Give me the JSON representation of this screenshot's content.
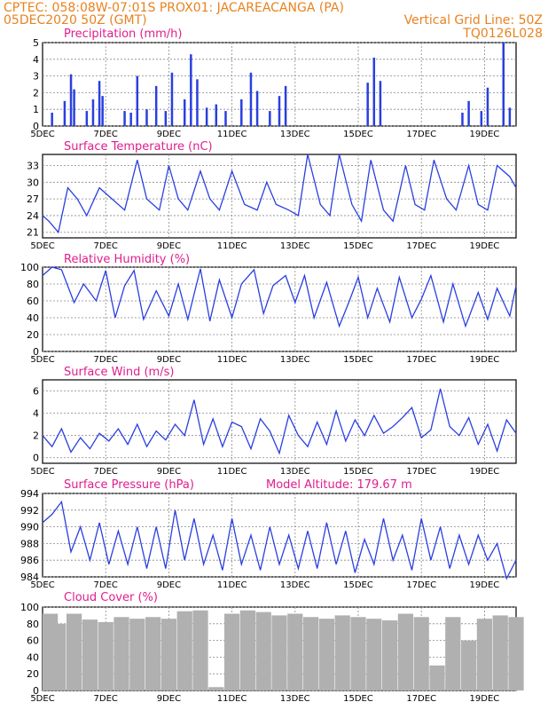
{
  "header": {
    "line1_left": "CPTEC:   058:08W-07:01S   PROX01: JACAREACANGA (PA)",
    "line2_left": "05DEC2020 50Z (GMT)",
    "line2_right": "Vertical Grid Line: 50Z",
    "line3_right": "TQ0126L028"
  },
  "colors": {
    "line": "#2a3fe0",
    "bars": "#2a3fe0",
    "cloud": "#b0b0b0",
    "header": "#e8821e",
    "title": "#e01e8c",
    "grid": "#888888"
  },
  "x_labels": [
    "5DEC",
    "7DEC",
    "9DEC",
    "11DEC",
    "13DEC",
    "15DEC",
    "17DEC",
    "19DEC"
  ],
  "chart_data": [
    {
      "type": "bar",
      "title": "Precipitation (mm/h)",
      "ylim": [
        0,
        5
      ],
      "yticks": [
        "0",
        "1",
        "2",
        "3",
        "4",
        "5"
      ],
      "x_range_days": [
        5,
        20
      ],
      "x": [
        5.3,
        5.7,
        5.9,
        6.0,
        6.4,
        6.6,
        6.8,
        6.9,
        7.6,
        7.8,
        8.0,
        8.3,
        8.6,
        8.9,
        9.1,
        9.5,
        9.7,
        9.9,
        10.2,
        10.5,
        10.8,
        11.3,
        11.6,
        11.8,
        12.2,
        12.5,
        12.7,
        15.3,
        15.5,
        15.7,
        18.3,
        18.5,
        18.9,
        19.1,
        19.6,
        19.8
      ],
      "values": [
        0.8,
        1.5,
        3.1,
        2.2,
        0.9,
        1.6,
        2.7,
        1.8,
        0.9,
        0.8,
        3.0,
        1.0,
        2.4,
        0.9,
        3.2,
        1.6,
        4.3,
        2.8,
        1.1,
        1.3,
        0.9,
        1.6,
        3.2,
        2.1,
        0.9,
        1.8,
        2.4,
        2.6,
        4.1,
        2.7,
        0.8,
        1.5,
        0.9,
        2.3,
        5.0,
        1.1
      ]
    },
    {
      "type": "line",
      "title": "Surface Temperature (nC)",
      "ylim": [
        20,
        35
      ],
      "yticks": [
        "21",
        "24",
        "27",
        "30",
        "33"
      ],
      "x_range_days": [
        5,
        20
      ],
      "x": [
        5.0,
        5.2,
        5.5,
        5.8,
        6.1,
        6.4,
        6.8,
        7.2,
        7.6,
        8.0,
        8.3,
        8.7,
        9.0,
        9.3,
        9.6,
        10.0,
        10.3,
        10.6,
        11.0,
        11.4,
        11.8,
        12.1,
        12.4,
        12.8,
        13.1,
        13.4,
        13.8,
        14.1,
        14.4,
        14.8,
        15.1,
        15.4,
        15.8,
        16.1,
        16.5,
        16.8,
        17.1,
        17.4,
        17.8,
        18.1,
        18.5,
        18.8,
        19.1,
        19.4,
        19.8,
        20.0
      ],
      "values": [
        24,
        23,
        21,
        29,
        27,
        24,
        29,
        27,
        25,
        34,
        27,
        25,
        33,
        27,
        25,
        32,
        27,
        25,
        32,
        26,
        25,
        30,
        26,
        25,
        24,
        35,
        26,
        24,
        35,
        26,
        23,
        34,
        25,
        23,
        33,
        26,
        25,
        34,
        27,
        25,
        33,
        26,
        25,
        33,
        31,
        29
      ]
    },
    {
      "type": "line",
      "title": "Relative Humidity (%)",
      "ylim": [
        0,
        100
      ],
      "yticks": [
        "0",
        "20",
        "40",
        "60",
        "80",
        "100"
      ],
      "x_range_days": [
        5,
        20
      ],
      "x": [
        5.0,
        5.3,
        5.6,
        6.0,
        6.3,
        6.7,
        7.0,
        7.3,
        7.6,
        7.9,
        8.2,
        8.6,
        9.0,
        9.3,
        9.6,
        10.0,
        10.3,
        10.6,
        11.0,
        11.3,
        11.7,
        12.0,
        12.3,
        12.7,
        13.0,
        13.3,
        13.6,
        14.0,
        14.4,
        14.7,
        15.0,
        15.3,
        15.6,
        16.0,
        16.3,
        16.7,
        17.0,
        17.3,
        17.7,
        18.0,
        18.4,
        18.8,
        19.1,
        19.4,
        19.8,
        20.0
      ],
      "values": [
        90,
        100,
        97,
        58,
        80,
        60,
        96,
        40,
        78,
        96,
        38,
        72,
        42,
        80,
        38,
        98,
        36,
        85,
        40,
        80,
        97,
        45,
        78,
        90,
        58,
        90,
        40,
        82,
        30,
        58,
        88,
        40,
        75,
        35,
        88,
        40,
        62,
        90,
        35,
        80,
        30,
        70,
        38,
        75,
        42,
        78
      ]
    },
    {
      "type": "line",
      "title": "Surface Wind (m/s)",
      "ylim": [
        -0.5,
        7
      ],
      "yticks": [
        "0",
        "2",
        "4",
        "6"
      ],
      "x_range_days": [
        5,
        20
      ],
      "x": [
        5.0,
        5.3,
        5.6,
        5.9,
        6.2,
        6.5,
        6.8,
        7.1,
        7.4,
        7.7,
        8.0,
        8.3,
        8.6,
        8.9,
        9.2,
        9.5,
        9.8,
        10.1,
        10.4,
        10.7,
        11.0,
        11.3,
        11.6,
        11.9,
        12.2,
        12.5,
        12.8,
        13.1,
        13.4,
        13.7,
        14.0,
        14.3,
        14.6,
        14.9,
        15.2,
        15.5,
        15.8,
        16.1,
        16.4,
        16.7,
        17.0,
        17.3,
        17.6,
        17.9,
        18.2,
        18.5,
        18.8,
        19.1,
        19.4,
        19.7,
        20.0
      ],
      "values": [
        2.0,
        1.0,
        2.6,
        0.5,
        1.8,
        0.8,
        2.2,
        1.5,
        2.6,
        1.2,
        3.0,
        1.0,
        2.4,
        1.6,
        3.0,
        2.0,
        5.2,
        1.2,
        3.5,
        1.0,
        3.2,
        2.8,
        0.8,
        3.5,
        2.4,
        0.4,
        3.8,
        2.0,
        1.0,
        3.2,
        1.2,
        4.2,
        1.5,
        3.4,
        2.0,
        3.8,
        2.2,
        2.8,
        3.6,
        4.5,
        1.8,
        2.5,
        6.2,
        2.8,
        2.0,
        3.6,
        1.2,
        3.0,
        0.6,
        3.4,
        2.2
      ]
    },
    {
      "type": "line",
      "title": "Surface Pressure (hPa)",
      "annotation": "Model Altitude: 179.67 m",
      "ylim": [
        984,
        994
      ],
      "yticks": [
        "984",
        "986",
        "988",
        "990",
        "992",
        "994"
      ],
      "x_range_days": [
        5,
        20
      ],
      "x": [
        5.0,
        5.3,
        5.6,
        5.9,
        6.2,
        6.5,
        6.8,
        7.1,
        7.4,
        7.7,
        8.0,
        8.3,
        8.6,
        8.9,
        9.2,
        9.5,
        9.8,
        10.1,
        10.4,
        10.7,
        11.0,
        11.3,
        11.6,
        11.9,
        12.2,
        12.5,
        12.8,
        13.1,
        13.4,
        13.7,
        14.0,
        14.3,
        14.6,
        14.9,
        15.2,
        15.5,
        15.8,
        16.1,
        16.4,
        16.7,
        17.0,
        17.3,
        17.6,
        17.9,
        18.2,
        18.5,
        18.8,
        19.1,
        19.4,
        19.7,
        20.0
      ],
      "values": [
        990.5,
        991.5,
        993,
        987,
        990,
        986,
        990.5,
        985.5,
        989.5,
        985.5,
        990,
        985,
        990,
        985,
        992,
        986,
        991,
        985.5,
        989,
        984.8,
        991,
        985.5,
        989,
        984.8,
        990,
        985.5,
        989,
        985,
        989.5,
        985,
        990.5,
        985.5,
        989.5,
        984.5,
        988.5,
        985.5,
        991,
        986,
        989,
        984.8,
        991,
        986,
        990,
        985,
        989,
        985.5,
        989,
        986,
        988,
        983.8,
        986
      ]
    },
    {
      "type": "bar",
      "title": "Cloud Cover (%)",
      "ylim": [
        0,
        100
      ],
      "yticks": [
        "0",
        "20",
        "40",
        "60",
        "80",
        "100"
      ],
      "x_range_days": [
        5,
        20
      ],
      "x": [
        5.0,
        5.5,
        6.0,
        6.5,
        7.0,
        7.5,
        8.0,
        8.5,
        9.0,
        9.5,
        10.0,
        10.5,
        11.0,
        11.5,
        12.0,
        12.5,
        13.0,
        13.5,
        14.0,
        14.5,
        15.0,
        15.5,
        16.0,
        16.5,
        17.0,
        17.5,
        18.0,
        18.5,
        19.0,
        19.5,
        20.0
      ],
      "values": [
        92,
        80,
        92,
        85,
        82,
        88,
        86,
        88,
        86,
        95,
        96,
        4,
        92,
        96,
        94,
        90,
        92,
        88,
        86,
        90,
        88,
        86,
        84,
        92,
        88,
        30,
        88,
        60,
        86,
        90,
        88
      ]
    }
  ]
}
